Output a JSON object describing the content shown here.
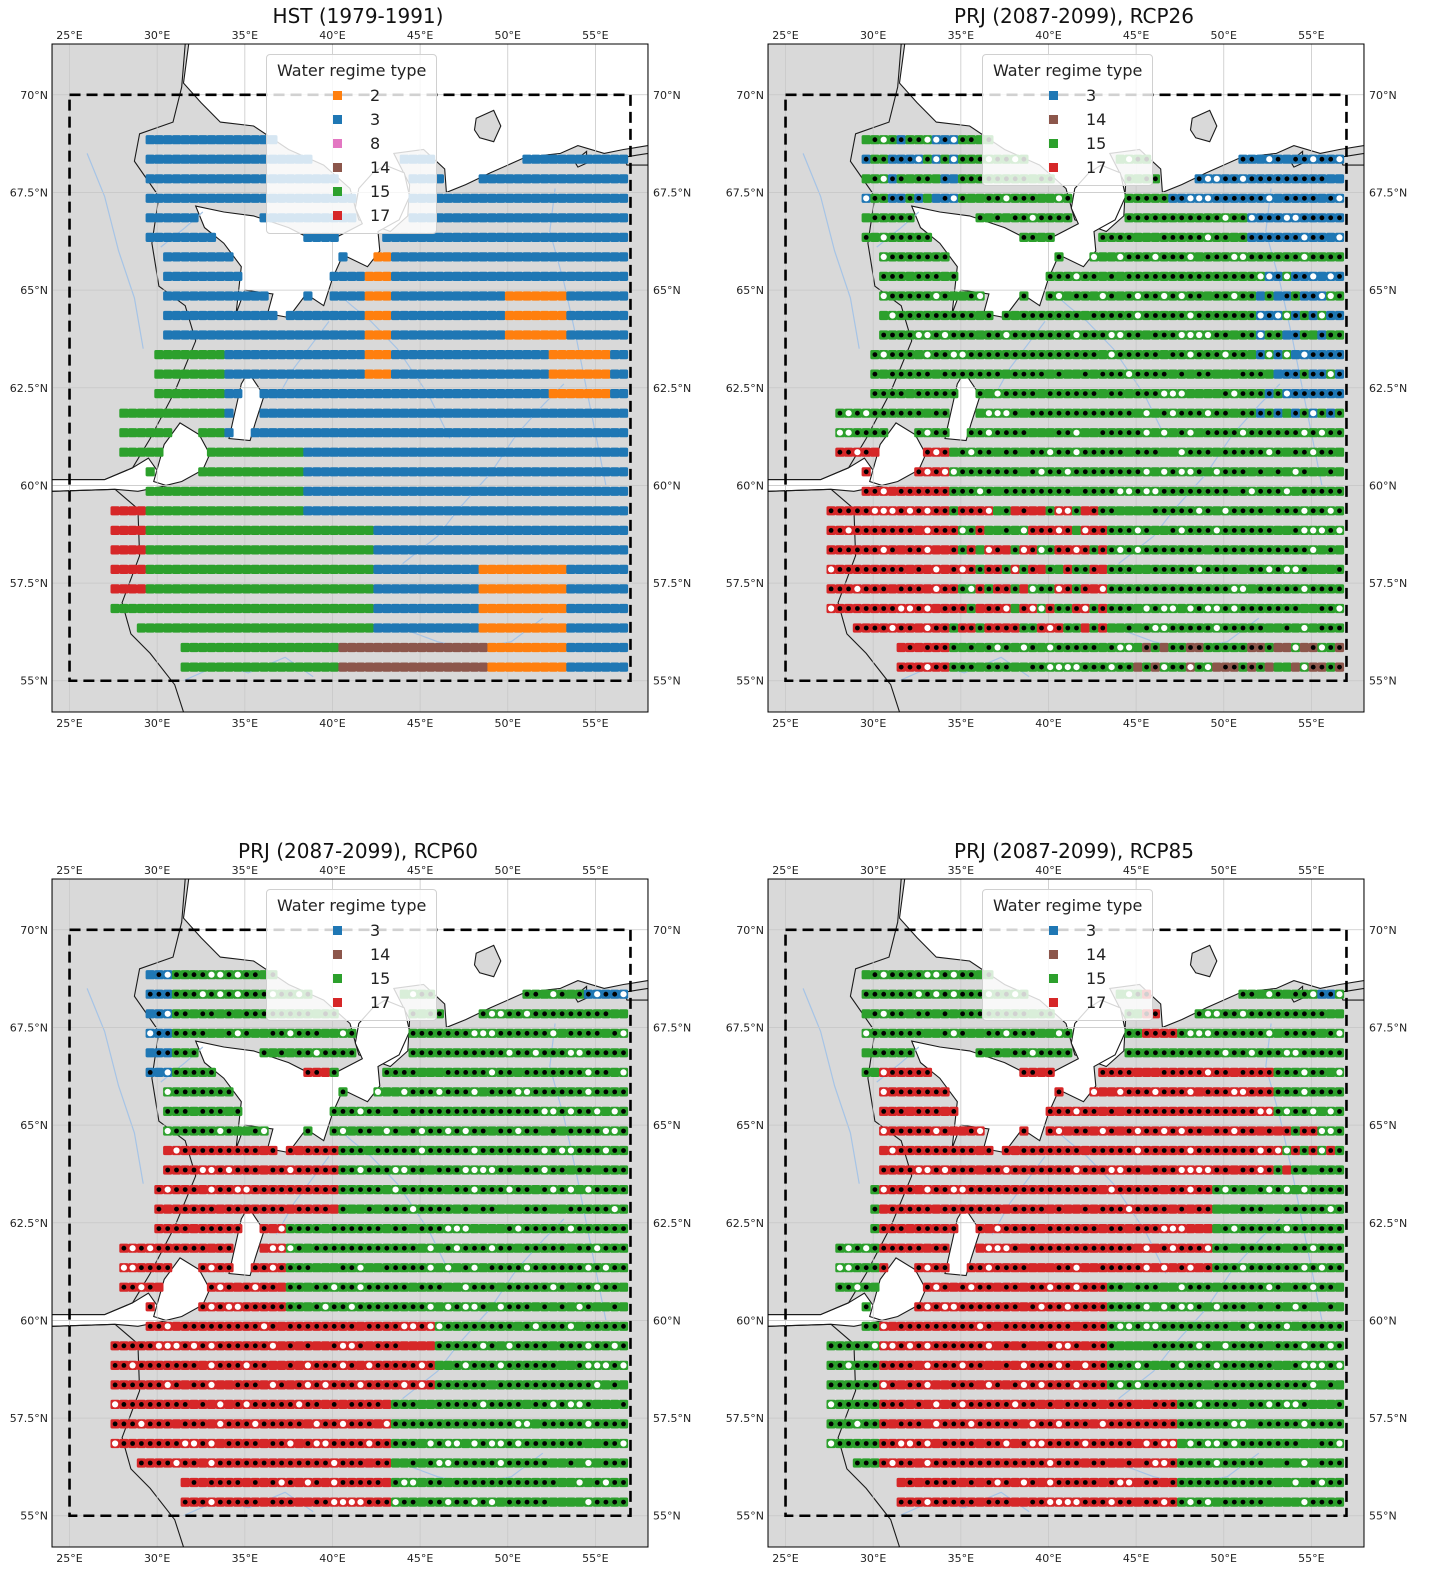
{
  "panels": [
    {
      "id": "hst",
      "title": "HST (1979-1991)",
      "legend_title": "Water regime type",
      "legend_items": [
        {
          "label": "2",
          "color": "#ff7f0e"
        },
        {
          "label": "3",
          "color": "#1f77b4"
        },
        {
          "label": "8",
          "color": "#e377c2"
        },
        {
          "label": "14",
          "color": "#8c564b"
        },
        {
          "label": "15",
          "color": "#2ca02c"
        },
        {
          "label": "17",
          "color": "#d62728"
        }
      ],
      "scenario": "hst"
    },
    {
      "id": "rcp26",
      "title": "PRJ (2087-2099), RCP26",
      "legend_title": "Water regime type",
      "legend_items": [
        {
          "label": "3",
          "color": "#1f77b4"
        },
        {
          "label": "14",
          "color": "#8c564b"
        },
        {
          "label": "15",
          "color": "#2ca02c"
        },
        {
          "label": "17",
          "color": "#d62728"
        }
      ],
      "scenario": "rcp26"
    },
    {
      "id": "rcp60",
      "title": "PRJ (2087-2099), RCP60",
      "legend_title": "Water regime type",
      "legend_items": [
        {
          "label": "3",
          "color": "#1f77b4"
        },
        {
          "label": "14",
          "color": "#8c564b"
        },
        {
          "label": "15",
          "color": "#2ca02c"
        },
        {
          "label": "17",
          "color": "#d62728"
        }
      ],
      "scenario": "rcp60"
    },
    {
      "id": "rcp85",
      "title": "PRJ (2087-2099), RCP85",
      "legend_title": "Water regime type",
      "legend_items": [
        {
          "label": "3",
          "color": "#1f77b4"
        },
        {
          "label": "14",
          "color": "#8c564b"
        },
        {
          "label": "15",
          "color": "#2ca02c"
        },
        {
          "label": "17",
          "color": "#d62728"
        }
      ],
      "scenario": "rcp85"
    }
  ],
  "lon_ticks": [
    "25°E",
    "30°E",
    "35°E",
    "40°E",
    "45°E",
    "50°E",
    "55°E"
  ],
  "lat_ticks": [
    "70°N",
    "67.5°N",
    "65°N",
    "62.5°N",
    "60°N",
    "57.5°N",
    "55°N"
  ],
  "colors": {
    "land": "#d9d9d9",
    "water": "#ffffff",
    "coast": "#1a1a1a",
    "river": "#a6c4e6",
    "grid": "#c8c8c8",
    "box": "#000000"
  }
}
